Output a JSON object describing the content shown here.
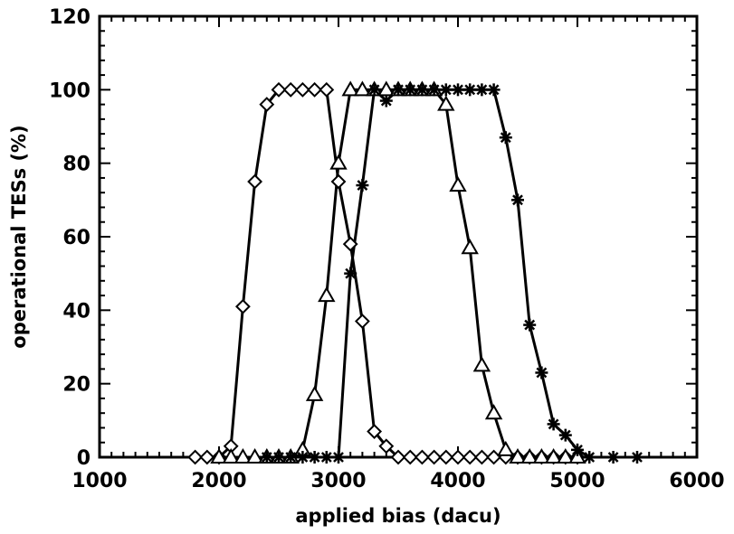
{
  "chart_data": {
    "type": "scatter",
    "xlabel": "applied bias (dacu)",
    "ylabel": "operational TESs (%)",
    "xlim": [
      1000,
      6000
    ],
    "ylim": [
      0,
      120
    ],
    "xticks": [
      1000,
      2000,
      3000,
      4000,
      5000,
      6000
    ],
    "yticks": [
      0,
      20,
      40,
      60,
      80,
      100,
      120
    ],
    "grid": false,
    "series": [
      {
        "marker": "diamond",
        "x": [
          1800,
          1900,
          2000,
          2100,
          2200,
          2300,
          2400,
          2500,
          2600,
          2700,
          2800,
          2900,
          3000,
          3100,
          3200,
          3300,
          3400,
          3500,
          3600,
          3700,
          3800,
          3900,
          4000,
          4100,
          4200,
          4300,
          4400,
          4500,
          4600,
          4700,
          4800,
          4900,
          5000
        ],
        "values": [
          0,
          0,
          0,
          3,
          41,
          75,
          96,
          100,
          100,
          100,
          100,
          100,
          75,
          58,
          37,
          7,
          3,
          0,
          0,
          0,
          0,
          0,
          0,
          0,
          0,
          0,
          0,
          0,
          0,
          0,
          0,
          0,
          0
        ]
      },
      {
        "marker": "triangle",
        "x": [
          2000,
          2100,
          2200,
          2300,
          2400,
          2500,
          2600,
          2700,
          2800,
          2900,
          3000,
          3100,
          3200,
          3300,
          3400,
          3500,
          3600,
          3700,
          3800,
          3900,
          4000,
          4100,
          4200,
          4300,
          4400,
          4500,
          4600,
          4700,
          4800,
          4900,
          5000
        ],
        "values": [
          0,
          0,
          0,
          0,
          0,
          0,
          0,
          2,
          17,
          44,
          80,
          100,
          100,
          100,
          100,
          100,
          100,
          100,
          100,
          96,
          74,
          57,
          25,
          12,
          2,
          0,
          0,
          0,
          0,
          0,
          0
        ]
      },
      {
        "marker": "asterisk",
        "x": [
          2400,
          2500,
          2600,
          2700,
          2800,
          2900,
          3000,
          3100,
          3200,
          3300,
          3400,
          3500,
          3600,
          3700,
          3800,
          3900,
          4000,
          4100,
          4200,
          4300,
          4400,
          4500,
          4600,
          4700,
          4800,
          4900,
          5000,
          5100,
          5300,
          5500
        ],
        "values": [
          0,
          0,
          0,
          0,
          0,
          0,
          0,
          50,
          74,
          100,
          97,
          100,
          100,
          100,
          100,
          100,
          100,
          100,
          100,
          100,
          87,
          70,
          36,
          23,
          9,
          6,
          2,
          0,
          0,
          0
        ]
      }
    ]
  }
}
